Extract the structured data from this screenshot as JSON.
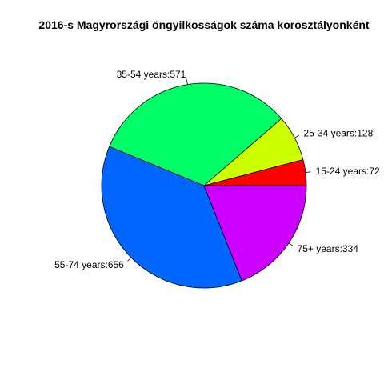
{
  "chart_data": {
    "type": "pie",
    "title": "2016-s Magyrországi öngyilkosságok száma korosztályonként",
    "categories": [
      "15-24 years",
      "25-34 years",
      "35-54 years",
      "55-74 years",
      "75+ years"
    ],
    "values": [
      72,
      128,
      571,
      656,
      334
    ],
    "labels": [
      "15-24 years:72",
      "25-34 years:128",
      "35-54 years:571",
      "55-74 years:656",
      "75+ years:334"
    ],
    "colors": [
      "#FF0000",
      "#CCFF00",
      "#00FF66",
      "#0066FF",
      "#CC00FF"
    ],
    "direction": "counterclockwise",
    "start": "east",
    "legend": "none"
  }
}
